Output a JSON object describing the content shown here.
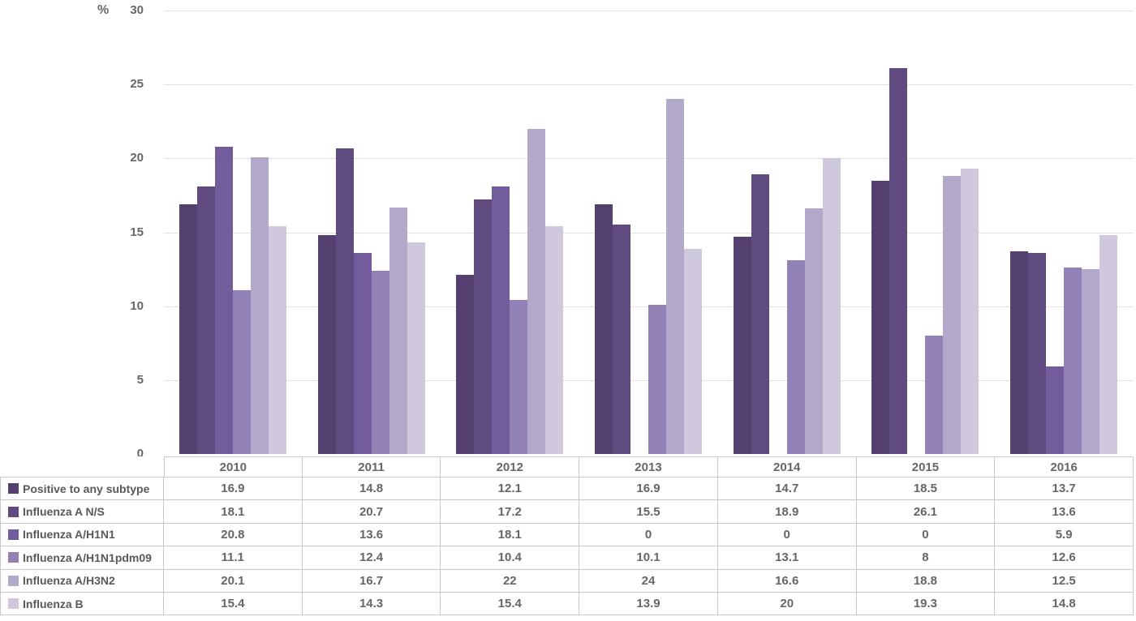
{
  "chart_data": {
    "type": "bar",
    "unit_label": "%",
    "categories": [
      "2010",
      "2011",
      "2012",
      "2013",
      "2014",
      "2015",
      "2016"
    ],
    "series": [
      {
        "name": "Positive to any subtype",
        "color": "#54406f",
        "values": [
          16.9,
          14.8,
          12.1,
          16.9,
          14.7,
          18.5,
          13.7
        ]
      },
      {
        "name": "Influenza A N/S",
        "color": "#5f4b80",
        "values": [
          18.1,
          20.7,
          17.2,
          15.5,
          18.9,
          26.1,
          13.6
        ]
      },
      {
        "name": "Influenza A/H1N1",
        "color": "#725c9b",
        "values": [
          20.8,
          13.6,
          18.1,
          0,
          0,
          0,
          5.9
        ]
      },
      {
        "name": "Influenza A/H1N1pdm09",
        "color": "#9181b4",
        "values": [
          11.1,
          12.4,
          10.4,
          10.1,
          13.1,
          8,
          12.6
        ]
      },
      {
        "name": "Influenza A/H3N2",
        "color": "#b2a8ca",
        "values": [
          20.1,
          16.7,
          22,
          24,
          16.6,
          18.8,
          12.5
        ]
      },
      {
        "name": "Influenza B",
        "color": "#d0c9de",
        "values": [
          15.4,
          14.3,
          15.4,
          13.9,
          20,
          19.3,
          14.8
        ]
      }
    ],
    "ylim": [
      0,
      30
    ],
    "yticks": [
      0,
      5,
      10,
      15,
      20,
      25,
      30
    ],
    "grid": true,
    "legend_position": "table-left"
  },
  "colors": {
    "gridline": "#e0e0e0",
    "table_border": "#c8c8c8",
    "text": "#666666"
  }
}
